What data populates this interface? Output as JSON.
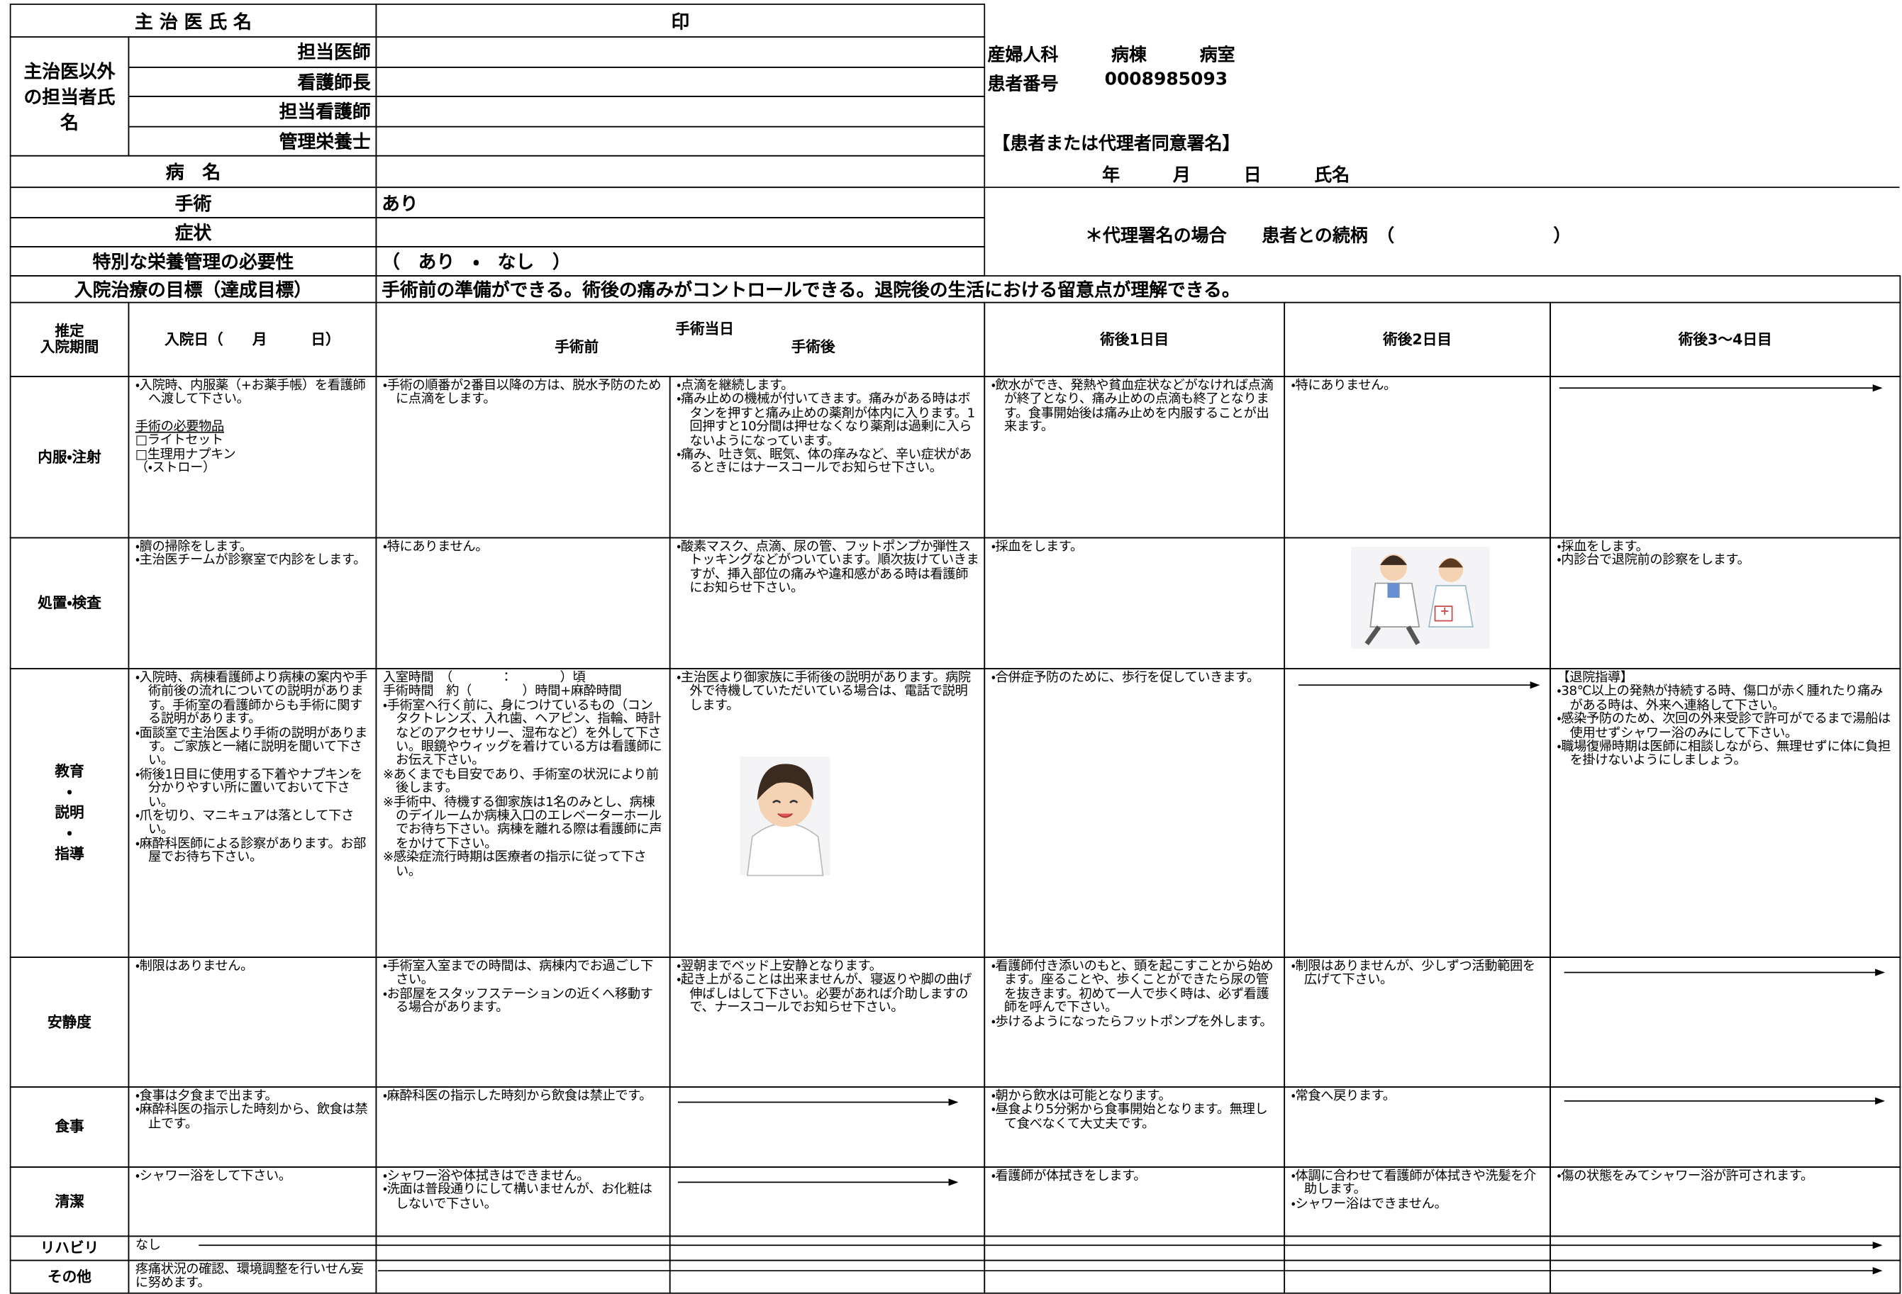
{
  "header": {
    "attending_label": "主 治 医 氏 名",
    "seal": "印",
    "staff_group_label": "主治医以外の担当者氏名",
    "staff_roles": [
      "担当医師",
      "看護師長",
      "担当看護師",
      "管理栄養士"
    ],
    "disease_label": "病　名",
    "surgery_label": "手術",
    "surgery_value": "あり",
    "symptom_label": "症状",
    "nutrition_label": "特別な栄養管理の必要性",
    "nutrition_value": "（　あり　・　なし　）",
    "goal_label": "入院治療の目標（達成目標）",
    "goal_value": "手術前の準備ができる。術後の痛みがコントロールできる。退院後の生活における留意点が理解できる。"
  },
  "patient": {
    "ward": "産婦人科　　　病棟　　　病室",
    "number_label": "患者番号",
    "number": "0008985093"
  },
  "consent": {
    "title": "【患者または代理者同意署名】",
    "date_name": "年　　　月　　　日　　　氏名",
    "proxy": "＊代理署名の場合　　患者との続柄　（　　　　　　　　　）"
  },
  "schedule": {
    "period_label": "推定\n入院期間",
    "admission_day": "入院日（　　月　　　日）",
    "surgery_day": "手術当日",
    "pre_op": "手術前",
    "post_op": "手術後",
    "day1": "術後1日目",
    "day2": "術後2日目",
    "day3_4": "術後3～4日目",
    "rows": [
      {
        "label": "内服・注射",
        "admission": [
          "・入院時、内服薬（+お薬手帳）を看護師へ渡して下さい。",
          "手術の必要物品",
          "□ライトセット",
          "□生理用ナプキン",
          "（・ストロー）"
        ],
        "pre_op": [
          "・手術の順番が2番目以降の方は、脱水予防のために点滴をします。"
        ],
        "post_op": [
          "・点滴を継続します。",
          "・痛み止めの機械が付いてきます。痛みがある時はボタンを押すと痛み止めの薬剤が体内に入ります。1回押すと10分間は押せなくなり薬剤は過剰に入らないようになっています。",
          "・痛み、吐き気、眠気、体の痒みなど、辛い症状があるときにはナースコールでお知らせ下さい。"
        ],
        "day1": [
          "・飲水ができ、発熱や貧血症状などがなければ点滴が終了となり、痛み止めの点滴も終了となります。食事開始後は痛み止めを内服することが出来ます。"
        ],
        "day2": [
          "・特にありません。"
        ]
      },
      {
        "label": "処置・検査",
        "admission": [
          "・臍の掃除をします。",
          "・主治医チームが診察室で内診をします。"
        ],
        "pre_op": [
          "・特にありません。"
        ],
        "post_op": [
          "・酸素マスク、点滴、尿の管、フットポンプか弾性ストッキングなどがついています。順次抜けていきますが、挿入部位の痛みや違和感がある時は看護師にお知らせ下さい。"
        ],
        "day1": [
          "・採血をします。"
        ],
        "day3_4": [
          "・採血をします。",
          "・内診台で退院前の診察をします。"
        ]
      },
      {
        "label": "教育\n・\n説明\n・\n指導",
        "admission": [
          "・入院時、病棟看護師より病棟の案内や手術前後の流れについての説明があります。手術室の看護師からも手術に関する説明があります。",
          "・面談室で主治医より手術の説明があります。ご家族と一緒に説明を聞いて下さい。",
          "・術後1日目に使用する下着やナプキンを分かりやすい所に置いておいて下さい。",
          "・爪を切り、マニキュアは落として下さい。",
          "・麻酔科医師による診察があります。お部屋でお待ち下さい。"
        ],
        "pre_op": [
          "入室時間　（　　　　：　　　　）頃",
          "手術時間　約（　　　　）時間+麻酔時間",
          "・手術室へ行く前に、身につけているもの（コンタクトレンズ、入れ歯、ヘアピン、指輪、時計などのアクセサリー、湿布など）を外して下さい。眼鏡やウィッグを着けている方は看護師にお伝え下さい。",
          "※あくまでも目安であり、手術室の状況により前後します。",
          "※手術中、待機する御家族は1名のみとし、病棟のデイルームか病棟入口のエレベーターホールでお待ち下さい。病棟を離れる際は看護師に声をかけて下さい。",
          "※感染症流行時期は医療者の指示に従って下さい。"
        ],
        "post_op": [
          "・主治医より御家族に手術後の説明があります。病院外で待機していただいている場合は、電話で説明します。"
        ],
        "day1": [
          "・合併症予防のために、歩行を促していきます。"
        ],
        "day3_4": [
          "【退院指導】",
          "・38℃以上の発熱が持続する時、傷口が赤く腫れたり痛みがある時は、外来へ連絡して下さい。",
          "・感染予防のため、次回の外来受診で許可がでるまで湯船は使用せずシャワー浴のみにして下さい。",
          "・職場復帰時期は医師に相談しながら、無理せずに体に負担を掛けないようにしましょう。"
        ]
      },
      {
        "label": "安静度",
        "admission": [
          "・制限はありません。"
        ],
        "pre_op": [
          "・手術室入室までの時間は、病棟内でお過ごし下さい。",
          "・お部屋をスタッフステーションの近くへ移動する場合があります。"
        ],
        "post_op": [
          "・翌朝までベッド上安静となります。",
          "・起き上がることは出来ませんが、寝返りや脚の曲げ伸ばしはして下さい。必要があれば介助しますので、ナースコールでお知らせ下さい。"
        ],
        "day1": [
          "・看護師付き添いのもと、頭を起こすことから始めます。座ることや、歩くことができたら尿の管を抜きます。初めて一人で歩く時は、必ず看護師を呼んで下さい。",
          "・歩けるようになったらフットポンプを外します。"
        ],
        "day2": [
          "・制限はありませんが、少しずつ活動範囲を広げて下さい。"
        ]
      },
      {
        "label": "食事",
        "admission": [
          "・食事は夕食まで出ます。",
          "・麻酔科医の指示した時刻から、飲食は禁止です。"
        ],
        "pre_op": [
          "・麻酔科医の指示した時刻から飲食は禁止です。"
        ],
        "day1": [
          "・朝から飲水は可能となります。",
          "・昼食より5分粥から食事開始となります。無理して食べなくて大丈夫です。"
        ],
        "day2": [
          "・常食へ戻ります。"
        ]
      },
      {
        "label": "清潔",
        "admission": [
          "・シャワー浴をして下さい。"
        ],
        "pre_op": [
          "・シャワー浴や体拭きはできません。",
          "・洗面は普段通りにして構いませんが、お化粧はしないで下さい。"
        ],
        "day1": [
          "・看護師が体拭きをします。"
        ],
        "day2": [
          "・体調に合わせて看護師が体拭きや洗髪を介助します。",
          "・シャワー浴はできません。"
        ],
        "day3_4": [
          "・傷の状態をみてシャワー浴が許可されます。"
        ]
      },
      {
        "label": "リハビリ",
        "admission": [
          "なし"
        ]
      },
      {
        "label": "その他",
        "admission": [
          "疼痛状況の確認、環境調整を行いせん妄に努めます。"
        ]
      }
    ]
  }
}
